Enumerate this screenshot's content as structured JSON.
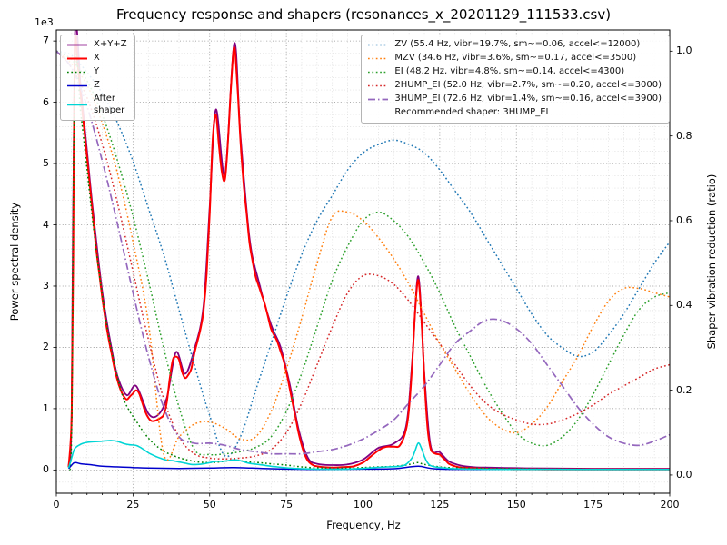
{
  "figure": {
    "title": "Frequency response and shapers (resonances_x_20201129_111533.csv)"
  },
  "chart_data": {
    "type": "line",
    "title": "Frequency response and shapers (resonances_x_20201129_111533.csv)",
    "xlabel": "Frequency, Hz",
    "ylabel_left": "Power spectral density",
    "ylabel_right": "Shaper vibration reduction (ratio)",
    "offset_text_left": "1e3",
    "grid": true,
    "legend_left_position": "upper left",
    "legend_right_position": "upper right",
    "legend_note": "Recommended shaper: 3HUMP_EI",
    "xlim": [
      0,
      200
    ],
    "xticks": [
      0,
      25,
      50,
      75,
      100,
      125,
      150,
      175,
      200
    ],
    "x_minor_step": 5,
    "ylim_left": [
      -380,
      7180
    ],
    "yticks_left": [
      0,
      1000,
      2000,
      3000,
      4000,
      5000,
      6000,
      7000
    ],
    "ytick_labels_left": [
      "0",
      "1",
      "2",
      "3",
      "4",
      "5",
      "6",
      "7"
    ],
    "y_left_minor_step": 200,
    "ylim_right": [
      -0.043,
      1.05
    ],
    "yticks_right": [
      0,
      0.2,
      0.4,
      0.6,
      0.8,
      1.0
    ],
    "ytick_labels_right": [
      "0.0",
      "0.2",
      "0.4",
      "0.6",
      "0.8",
      "1.0"
    ],
    "psd_series": [
      {
        "name": "sum",
        "label": "X+Y+Z",
        "color": "#800080",
        "style": "solid",
        "lw": 1.8,
        "x": [
          4,
          5,
          6,
          8,
          10,
          12,
          15,
          18,
          20,
          23,
          26,
          30,
          33,
          36,
          39,
          42,
          45,
          48,
          50,
          52,
          55,
          58,
          60,
          63,
          66,
          70,
          73,
          76,
          79,
          82,
          85,
          90,
          95,
          100,
          105,
          110,
          114,
          116,
          118,
          120,
          122,
          125,
          128,
          132,
          136,
          140,
          150,
          160,
          175,
          200
        ],
        "y": [
          60,
          1000,
          7000,
          6200,
          5200,
          4200,
          2900,
          1980,
          1520,
          1220,
          1370,
          920,
          890,
          1170,
          1920,
          1570,
          1970,
          2680,
          4300,
          5880,
          4830,
          6960,
          5480,
          3780,
          3070,
          2370,
          2020,
          1420,
          660,
          200,
          100,
          80,
          90,
          170,
          360,
          430,
          700,
          1760,
          3160,
          1560,
          400,
          290,
          140,
          70,
          45,
          40,
          30,
          25,
          20,
          20
        ]
      },
      {
        "name": "x",
        "label": "X",
        "color": "#ff0000",
        "style": "solid",
        "lw": 2,
        "x": [
          4,
          5,
          5.5,
          6,
          7,
          8,
          9,
          10,
          11,
          12,
          13,
          14,
          15,
          16,
          17,
          18,
          19,
          20,
          21,
          22,
          23,
          24,
          25,
          26,
          27,
          28,
          29,
          30,
          31,
          32,
          33,
          34,
          35,
          36,
          37,
          38,
          39,
          40,
          41,
          42,
          43,
          44,
          45,
          46,
          47,
          48,
          49,
          50,
          51,
          52,
          53,
          54,
          55,
          56,
          57,
          58,
          59,
          60,
          61,
          62,
          63,
          64,
          65,
          66,
          67,
          68,
          69,
          70,
          71,
          72,
          73,
          74,
          75,
          76,
          77,
          78,
          79,
          80,
          81,
          82,
          83,
          84,
          85,
          87,
          90,
          93,
          95,
          97,
          100,
          102,
          104,
          106,
          108,
          110,
          112,
          114,
          115,
          116,
          117,
          118,
          119,
          120,
          121,
          122,
          123,
          124,
          125,
          126,
          127,
          128,
          130,
          132,
          135,
          140,
          145,
          150,
          160,
          170,
          180,
          190,
          200
        ],
        "y": [
          50,
          900,
          3500,
          6900,
          6600,
          6100,
          5600,
          5100,
          4600,
          4100,
          3600,
          3200,
          2800,
          2450,
          2150,
          1900,
          1650,
          1450,
          1300,
          1200,
          1150,
          1200,
          1250,
          1300,
          1250,
          1100,
          950,
          850,
          800,
          800,
          820,
          850,
          900,
          1100,
          1500,
          1800,
          1850,
          1800,
          1600,
          1500,
          1550,
          1650,
          1900,
          2100,
          2300,
          2600,
          3200,
          4200,
          5400,
          5800,
          5300,
          4850,
          4750,
          5400,
          6300,
          6900,
          6300,
          5400,
          4700,
          4200,
          3700,
          3400,
          3150,
          3000,
          2850,
          2700,
          2500,
          2300,
          2200,
          2100,
          1950,
          1800,
          1600,
          1350,
          1100,
          850,
          600,
          400,
          250,
          150,
          100,
          70,
          60,
          45,
          40,
          45,
          50,
          60,
          120,
          200,
          280,
          350,
          380,
          380,
          400,
          650,
          1000,
          1700,
          2600,
          3100,
          2500,
          1500,
          700,
          350,
          280,
          260,
          250,
          200,
          150,
          100,
          60,
          40,
          30,
          20,
          15,
          12,
          10,
          10,
          8,
          8,
          8
        ]
      },
      {
        "name": "y",
        "label": "Y",
        "color": "#008000",
        "style": "dotted",
        "lw": 1.5,
        "x": [
          4,
          5,
          6,
          8,
          10,
          12,
          14,
          16,
          18,
          20,
          22,
          24,
          26,
          28,
          30,
          32,
          34,
          36,
          38,
          40,
          43,
          46,
          50,
          53,
          56,
          58,
          60,
          63,
          66,
          70,
          75,
          80,
          85,
          90,
          95,
          100,
          105,
          110,
          114,
          116,
          118,
          120,
          125,
          130,
          140,
          150,
          160,
          175,
          200
        ],
        "y": [
          40,
          700,
          6500,
          5800,
          4900,
          4000,
          3200,
          2500,
          1950,
          1500,
          1150,
          950,
          800,
          650,
          520,
          420,
          340,
          280,
          240,
          200,
          160,
          130,
          120,
          130,
          150,
          160,
          150,
          130,
          120,
          100,
          80,
          50,
          35,
          30,
          30,
          40,
          50,
          60,
          80,
          100,
          120,
          90,
          50,
          35,
          25,
          20,
          15,
          12,
          10
        ]
      },
      {
        "name": "z",
        "label": "Z",
        "color": "#0000cc",
        "style": "solid",
        "lw": 1.5,
        "x": [
          4,
          5,
          6,
          8,
          10,
          12,
          15,
          20,
          25,
          30,
          40,
          50,
          58,
          70,
          85,
          100,
          110,
          118,
          125,
          150,
          200
        ],
        "y": [
          20,
          80,
          120,
          100,
          90,
          80,
          60,
          50,
          40,
          30,
          25,
          30,
          40,
          20,
          10,
          15,
          20,
          60,
          15,
          10,
          8
        ]
      },
      {
        "name": "after-shaper",
        "label": "After\nshaper",
        "color": "#00d5d5",
        "style": "solid",
        "lw": 1.6,
        "x": [
          4,
          5,
          6,
          8,
          10,
          12,
          14,
          16,
          18,
          20,
          22,
          24,
          26,
          28,
          30,
          32,
          34,
          36,
          38,
          40,
          42,
          44,
          46,
          48,
          50,
          52,
          54,
          56,
          58,
          60,
          62,
          64,
          66,
          68,
          70,
          72,
          75,
          78,
          80,
          85,
          90,
          95,
          100,
          104,
          108,
          112,
          114,
          116,
          117,
          118,
          119,
          120,
          121,
          122,
          124,
          126,
          128,
          130,
          135,
          140,
          150,
          160,
          175,
          200
        ],
        "y": [
          30,
          200,
          350,
          420,
          450,
          460,
          465,
          475,
          480,
          465,
          430,
          410,
          400,
          350,
          280,
          230,
          190,
          160,
          150,
          130,
          110,
          90,
          90,
          100,
          120,
          140,
          140,
          150,
          165,
          150,
          120,
          100,
          90,
          75,
          60,
          50,
          35,
          25,
          20,
          15,
          12,
          15,
          25,
          40,
          50,
          60,
          90,
          200,
          320,
          440,
          360,
          220,
          120,
          70,
          45,
          35,
          25,
          20,
          15,
          12,
          10,
          10,
          8,
          8
        ]
      }
    ],
    "shaper_series": [
      {
        "name": "ZV",
        "label": "ZV (55.4 Hz, vibr=19.7%, sm~=0.06, accel<=12000)",
        "color": "#1f77b4",
        "style": "dotted",
        "lw": 1.5,
        "x": [
          0,
          5,
          10,
          15,
          20,
          25,
          30,
          35,
          40,
          45,
          50,
          55,
          60,
          65,
          70,
          75,
          80,
          85,
          90,
          95,
          100,
          105,
          110,
          115,
          120,
          125,
          130,
          135,
          140,
          145,
          150,
          155,
          160,
          165,
          170,
          175,
          180,
          185,
          190,
          195,
          200
        ],
        "y": [
          1.0,
          0.99,
          0.95,
          0.9,
          0.83,
          0.74,
          0.63,
          0.52,
          0.39,
          0.26,
          0.14,
          0.045,
          0.09,
          0.2,
          0.31,
          0.42,
          0.52,
          0.6,
          0.66,
          0.72,
          0.76,
          0.78,
          0.79,
          0.78,
          0.76,
          0.72,
          0.67,
          0.62,
          0.56,
          0.5,
          0.44,
          0.38,
          0.33,
          0.3,
          0.28,
          0.29,
          0.33,
          0.38,
          0.44,
          0.5,
          0.55
        ]
      },
      {
        "name": "MZV",
        "label": "MZV (34.6 Hz, vibr=3.6%, sm~=0.17, accel<=3500)",
        "color": "#ff7f0e",
        "style": "dotted",
        "lw": 1.5,
        "x": [
          0,
          5,
          10,
          15,
          20,
          25,
          30,
          35,
          40,
          45,
          50,
          55,
          60,
          65,
          70,
          75,
          80,
          85,
          90,
          95,
          100,
          105,
          110,
          115,
          120,
          125,
          130,
          135,
          140,
          145,
          150,
          155,
          160,
          165,
          170,
          175,
          180,
          185,
          190,
          195,
          200
        ],
        "y": [
          1.0,
          0.97,
          0.92,
          0.83,
          0.71,
          0.55,
          0.36,
          0.05,
          0.09,
          0.12,
          0.125,
          0.11,
          0.085,
          0.09,
          0.15,
          0.25,
          0.37,
          0.5,
          0.61,
          0.62,
          0.6,
          0.56,
          0.51,
          0.45,
          0.38,
          0.31,
          0.25,
          0.19,
          0.14,
          0.11,
          0.1,
          0.12,
          0.16,
          0.22,
          0.28,
          0.35,
          0.41,
          0.44,
          0.44,
          0.43,
          0.42
        ]
      },
      {
        "name": "EI",
        "label": "EI (48.2 Hz, vibr=4.8%, sm~=0.14, accel<=4300)",
        "color": "#2ca02c",
        "style": "dotted",
        "lw": 1.5,
        "x": [
          0,
          5,
          10,
          15,
          20,
          25,
          30,
          35,
          40,
          45,
          50,
          55,
          60,
          65,
          70,
          75,
          80,
          85,
          90,
          95,
          100,
          105,
          110,
          115,
          120,
          125,
          130,
          135,
          140,
          145,
          150,
          155,
          160,
          165,
          170,
          175,
          180,
          185,
          190,
          195,
          200
        ],
        "y": [
          1.0,
          0.98,
          0.93,
          0.85,
          0.74,
          0.61,
          0.46,
          0.3,
          0.16,
          0.06,
          0.048,
          0.05,
          0.055,
          0.065,
          0.09,
          0.15,
          0.24,
          0.35,
          0.46,
          0.54,
          0.6,
          0.62,
          0.6,
          0.56,
          0.5,
          0.43,
          0.35,
          0.28,
          0.21,
          0.15,
          0.1,
          0.075,
          0.07,
          0.09,
          0.13,
          0.19,
          0.26,
          0.33,
          0.39,
          0.42,
          0.43
        ]
      },
      {
        "name": "2HUMP_EI",
        "label": "2HUMP_EI (52.0 Hz, vibr=2.7%, sm~=0.20, accel<=3000)",
        "color": "#d62728",
        "style": "dotted",
        "lw": 1.5,
        "x": [
          0,
          5,
          10,
          15,
          20,
          25,
          30,
          35,
          40,
          45,
          50,
          55,
          60,
          65,
          70,
          75,
          80,
          85,
          90,
          95,
          100,
          105,
          110,
          115,
          120,
          125,
          130,
          135,
          140,
          145,
          150,
          155,
          160,
          165,
          170,
          175,
          180,
          185,
          190,
          195,
          200
        ],
        "y": [
          1.0,
          0.96,
          0.89,
          0.78,
          0.64,
          0.48,
          0.32,
          0.18,
          0.09,
          0.05,
          0.04,
          0.038,
          0.04,
          0.045,
          0.06,
          0.1,
          0.17,
          0.26,
          0.35,
          0.43,
          0.47,
          0.47,
          0.45,
          0.41,
          0.36,
          0.31,
          0.26,
          0.21,
          0.17,
          0.145,
          0.13,
          0.12,
          0.12,
          0.13,
          0.145,
          0.165,
          0.19,
          0.21,
          0.23,
          0.25,
          0.26
        ]
      },
      {
        "name": "3HUMP_EI",
        "label": "3HUMP_EI (72.6 Hz, vibr=1.4%, sm~=0.16, accel<=3900)",
        "color": "#9467bd",
        "style": "dashdot",
        "lw": 1.7,
        "x": [
          0,
          5,
          10,
          15,
          20,
          25,
          30,
          35,
          40,
          45,
          50,
          55,
          60,
          65,
          70,
          75,
          80,
          85,
          90,
          95,
          100,
          105,
          110,
          115,
          120,
          125,
          130,
          135,
          140,
          145,
          150,
          155,
          160,
          165,
          170,
          175,
          180,
          185,
          190,
          195,
          200
        ],
        "y": [
          1.0,
          0.96,
          0.87,
          0.74,
          0.59,
          0.43,
          0.28,
          0.16,
          0.09,
          0.075,
          0.075,
          0.07,
          0.06,
          0.055,
          0.05,
          0.05,
          0.05,
          0.055,
          0.06,
          0.07,
          0.085,
          0.105,
          0.13,
          0.17,
          0.21,
          0.26,
          0.31,
          0.34,
          0.365,
          0.365,
          0.345,
          0.31,
          0.26,
          0.21,
          0.16,
          0.12,
          0.09,
          0.075,
          0.07,
          0.08,
          0.095
        ]
      }
    ]
  }
}
